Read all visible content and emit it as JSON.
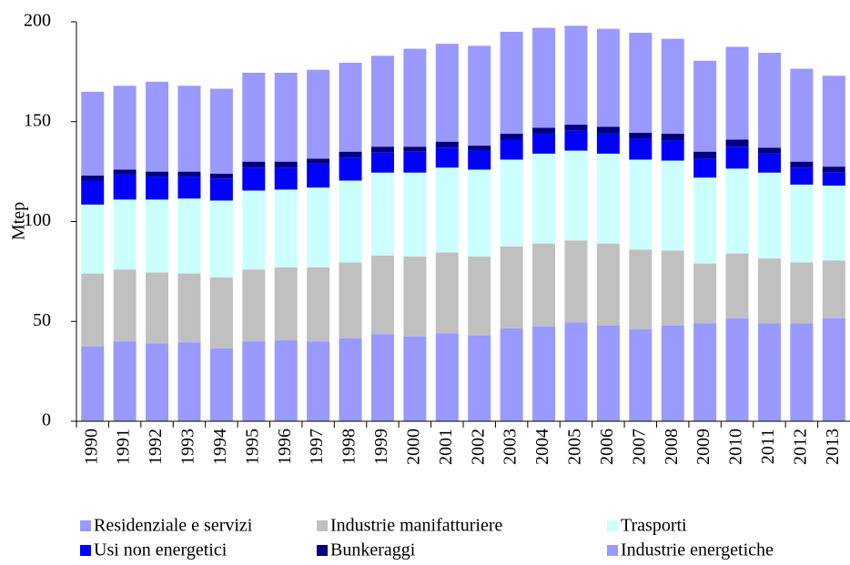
{
  "chart_data": {
    "type": "stacked_bar",
    "y_label": "Mtep",
    "categories": [
      "1990",
      "1991",
      "1992",
      "1993",
      "1994",
      "1995",
      "1996",
      "1997",
      "1998",
      "1999",
      "2000",
      "2001",
      "2002",
      "2003",
      "2004",
      "2005",
      "2006",
      "2007",
      "2008",
      "2009",
      "2010",
      "2011",
      "2012",
      "2013"
    ],
    "ylim": [
      0,
      200
    ],
    "yticks": [
      0,
      50,
      100,
      150,
      200
    ],
    "grid": false,
    "legend": "bottom",
    "series": [
      {
        "name": "Industrie energetiche",
        "color": "#9999ff",
        "values": [
          37.5,
          40,
          39,
          39.5,
          36.5,
          40,
          40.5,
          40,
          41.5,
          43.5,
          42.5,
          44,
          43,
          46.5,
          47.5,
          49.5,
          48,
          46,
          48,
          49,
          51.5,
          49,
          49,
          51.5
        ]
      },
      {
        "name": "Industrie manifatturiere",
        "color": "#c0c0c0",
        "values": [
          36.5,
          36,
          35.5,
          34.5,
          35.5,
          36,
          36.5,
          37,
          38,
          39.5,
          40,
          40.5,
          39.5,
          41,
          41.5,
          41,
          41,
          40,
          37.5,
          30,
          32.5,
          32.5,
          30.5,
          29
        ]
      },
      {
        "name": "Trasporti",
        "color": "#ccffff",
        "values": [
          34.5,
          35,
          36.5,
          37.5,
          38.5,
          39.5,
          39,
          40,
          41,
          41.5,
          42,
          42.5,
          43.5,
          43.5,
          45,
          45,
          45,
          45,
          45,
          43,
          42.5,
          43,
          39,
          37.5
        ]
      },
      {
        "name": "Usi non energetici",
        "color": "#0000ff",
        "values": [
          12,
          12.5,
          11.5,
          11,
          11,
          11.5,
          11,
          12,
          11.5,
          10,
          10.5,
          10,
          9.5,
          10,
          10,
          10,
          10,
          10.5,
          10,
          9.5,
          11,
          9.5,
          8.5,
          6.5
        ]
      },
      {
        "name": "Bunkeraggi",
        "color": "#000080",
        "values": [
          2.5,
          2.5,
          2.5,
          2.5,
          2.5,
          3,
          3,
          2.5,
          3,
          3,
          2.5,
          3,
          2.5,
          3,
          3,
          3,
          3.5,
          3,
          3.5,
          3.5,
          3.5,
          3,
          3,
          3
        ]
      },
      {
        "name": "Residenziale e servizi",
        "color": "#9999ff",
        "values": [
          42,
          42,
          45,
          43,
          42.5,
          44.5,
          44.5,
          44.5,
          44.5,
          45.5,
          49,
          49,
          50,
          51,
          50,
          49.5,
          49,
          50,
          47.5,
          45.5,
          46.5,
          47.5,
          46.5,
          45.5
        ]
      }
    ]
  }
}
